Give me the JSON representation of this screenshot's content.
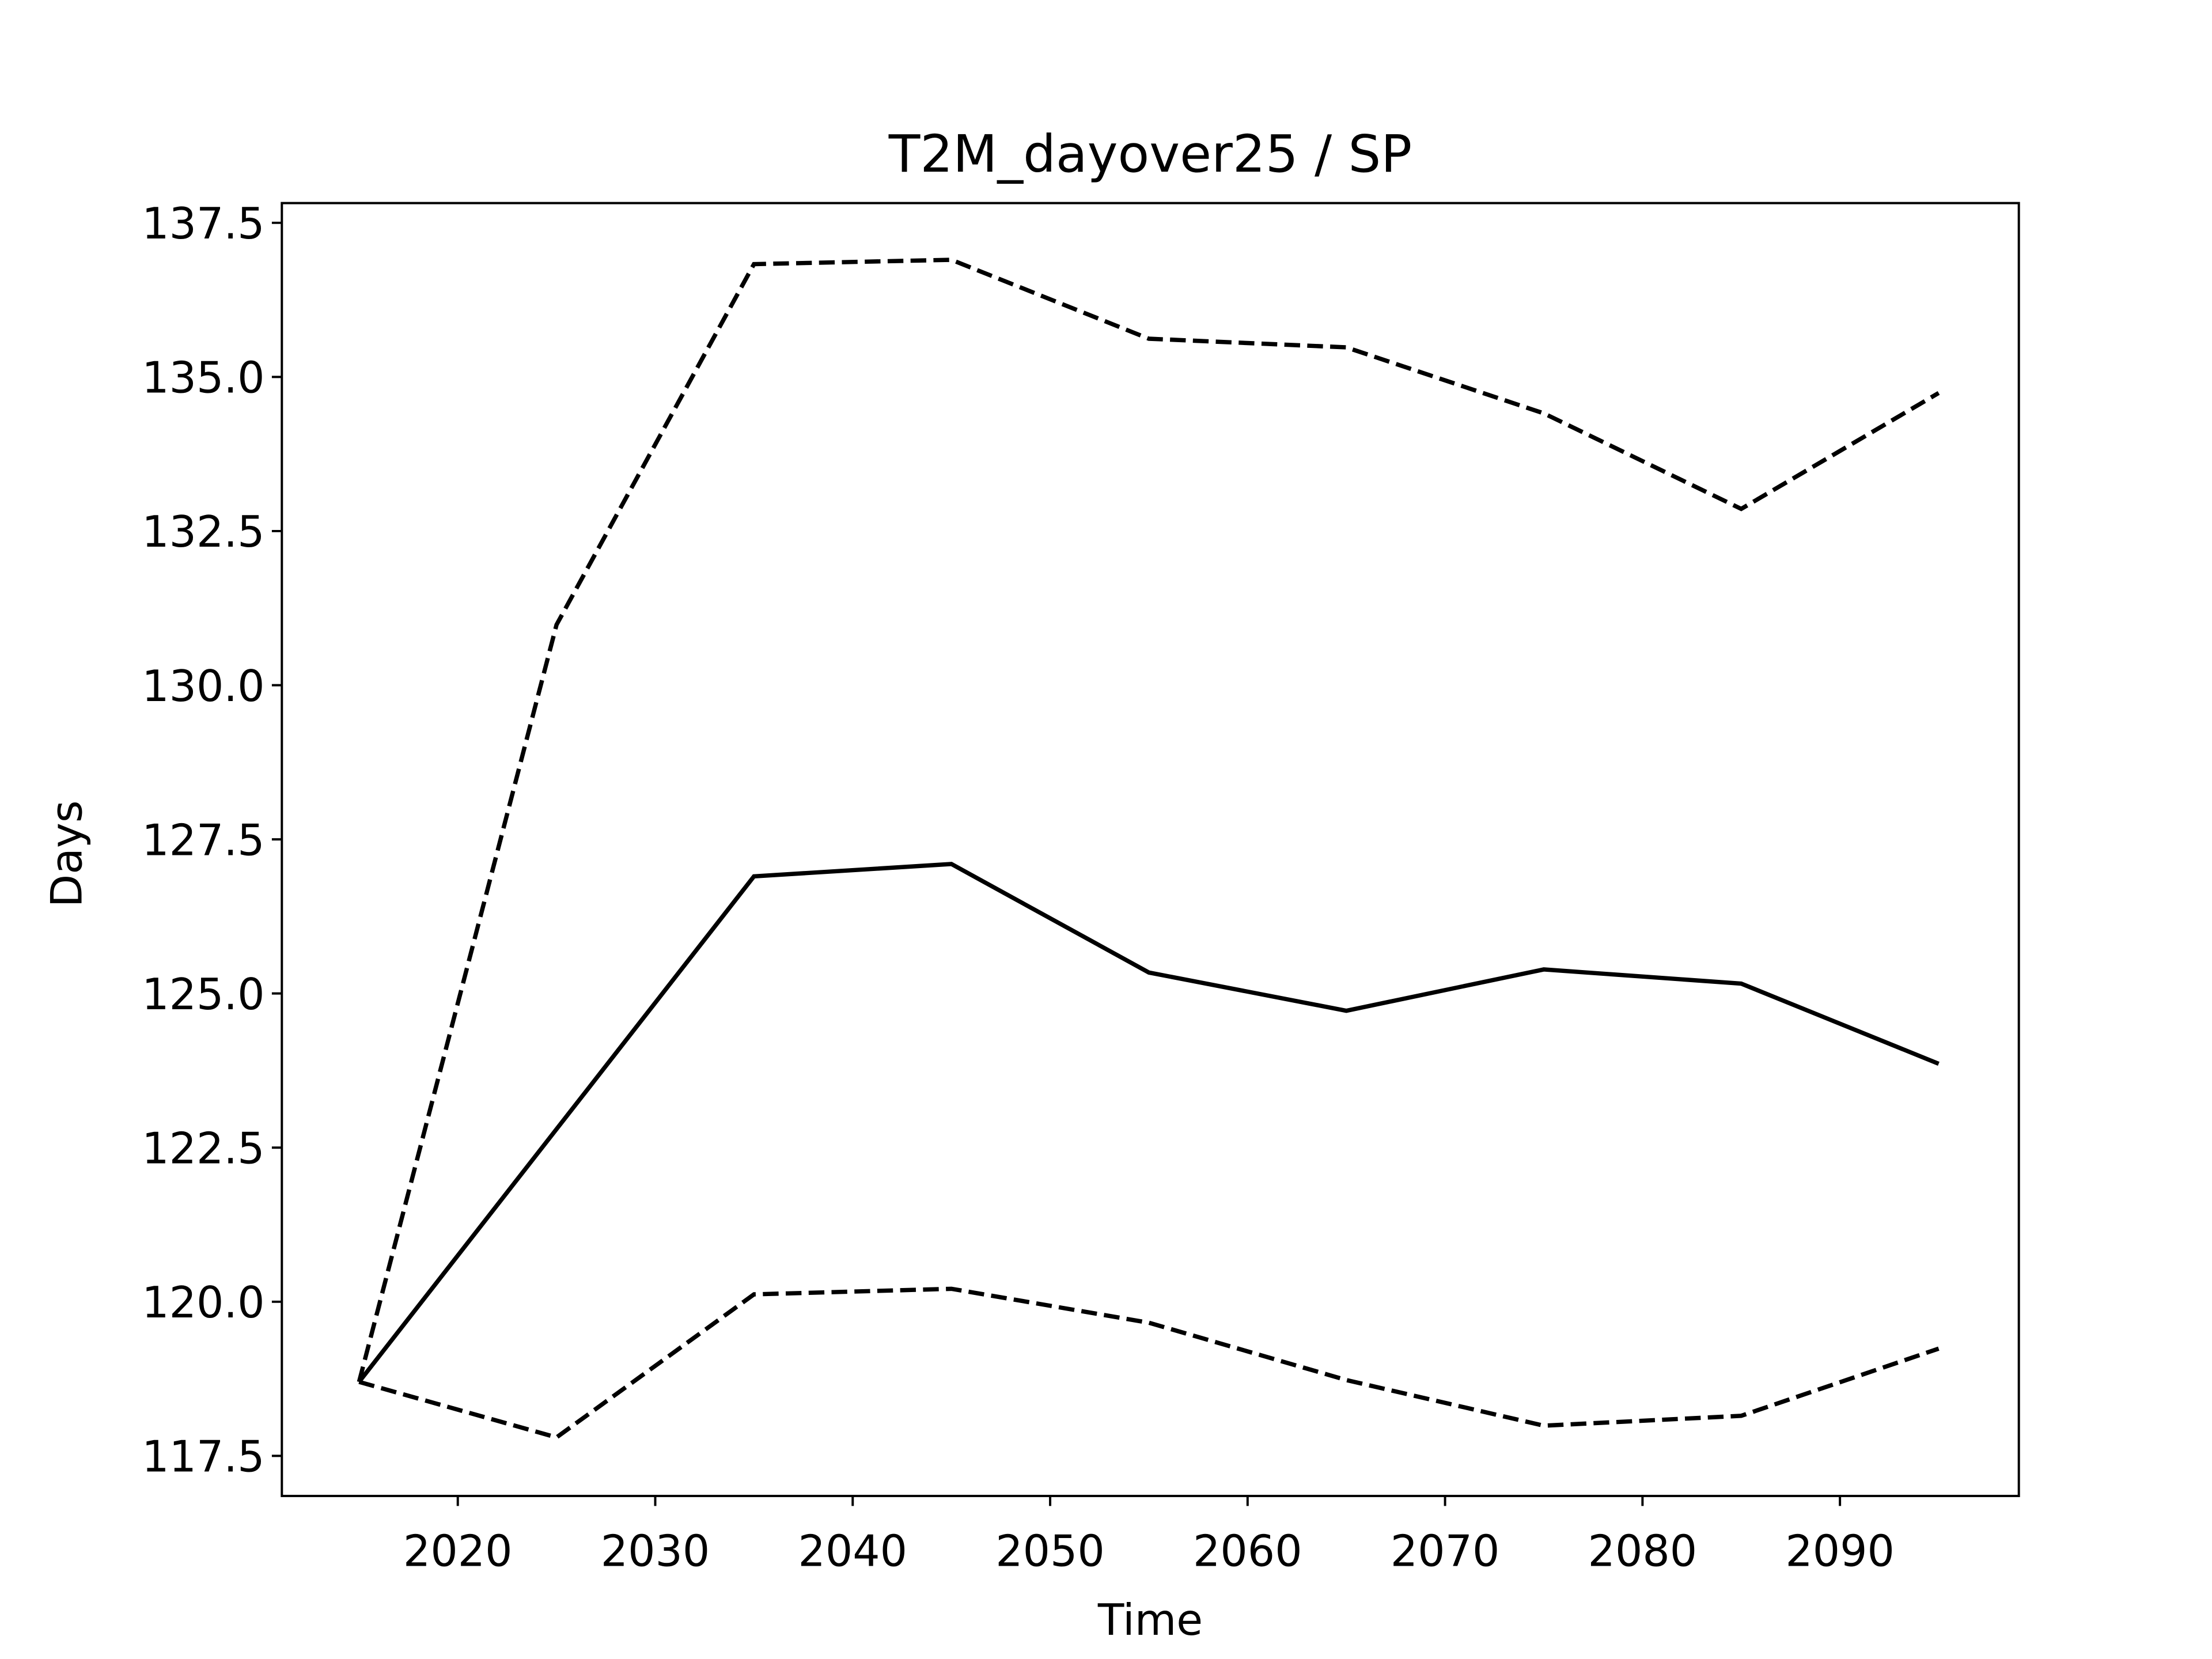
{
  "chart_data": {
    "type": "line",
    "title": "T2M_dayover25 / SP",
    "xlabel": "Time",
    "ylabel": "Days",
    "x": [
      2015,
      2025,
      2035,
      2045,
      2055,
      2065,
      2075,
      2085,
      2095
    ],
    "series": [
      {
        "color": "#000000",
        "linestyle": "solid",
        "values": [
          118.7,
          122.8,
          126.9,
          127.1,
          125.34,
          124.72,
          125.39,
          125.16,
          123.86
        ]
      },
      {
        "color": "#000000",
        "linestyle": "dashed",
        "values": [
          118.7,
          130.98,
          136.83,
          136.9,
          135.62,
          135.48,
          134.41,
          132.86,
          134.74
        ]
      },
      {
        "color": "#000000",
        "linestyle": "dashed",
        "values": [
          118.7,
          117.8,
          120.12,
          120.21,
          119.66,
          118.73,
          117.99,
          118.15,
          119.24
        ]
      }
    ],
    "xlim": [
      2011.09,
      2099.06
    ],
    "xticks": [
      2020,
      2030,
      2040,
      2050,
      2060,
      2070,
      2080,
      2090
    ],
    "ylim": [
      116.85,
      137.82
    ],
    "yticks": [
      {
        "value": 117.5,
        "label": "117.5"
      },
      {
        "value": 120,
        "label": "120.0"
      },
      {
        "value": 122.5,
        "label": "122.5"
      },
      {
        "value": 125,
        "label": "125.0"
      },
      {
        "value": 127.5,
        "label": "127.5"
      },
      {
        "value": 130,
        "label": "130.0"
      },
      {
        "value": 132.5,
        "label": "132.5"
      },
      {
        "value": 135,
        "label": "135.0"
      },
      {
        "value": 137.5,
        "label": "137.5"
      }
    ],
    "grid": false
  }
}
